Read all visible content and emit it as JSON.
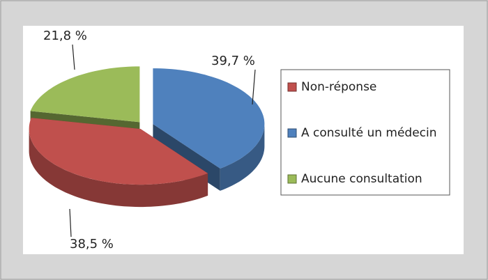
{
  "chart_data": {
    "type": "pie",
    "categories": [
      "Non-réponse",
      "A consulté un médecin",
      "Aucune consultation"
    ],
    "values": [
      38.5,
      39.7,
      21.8
    ],
    "value_labels": [
      "38,5 %",
      "39,7 %",
      "21,8 %"
    ],
    "colors": [
      "#c0504d",
      "#4f81bd",
      "#9bbb59"
    ],
    "legend": "right"
  }
}
